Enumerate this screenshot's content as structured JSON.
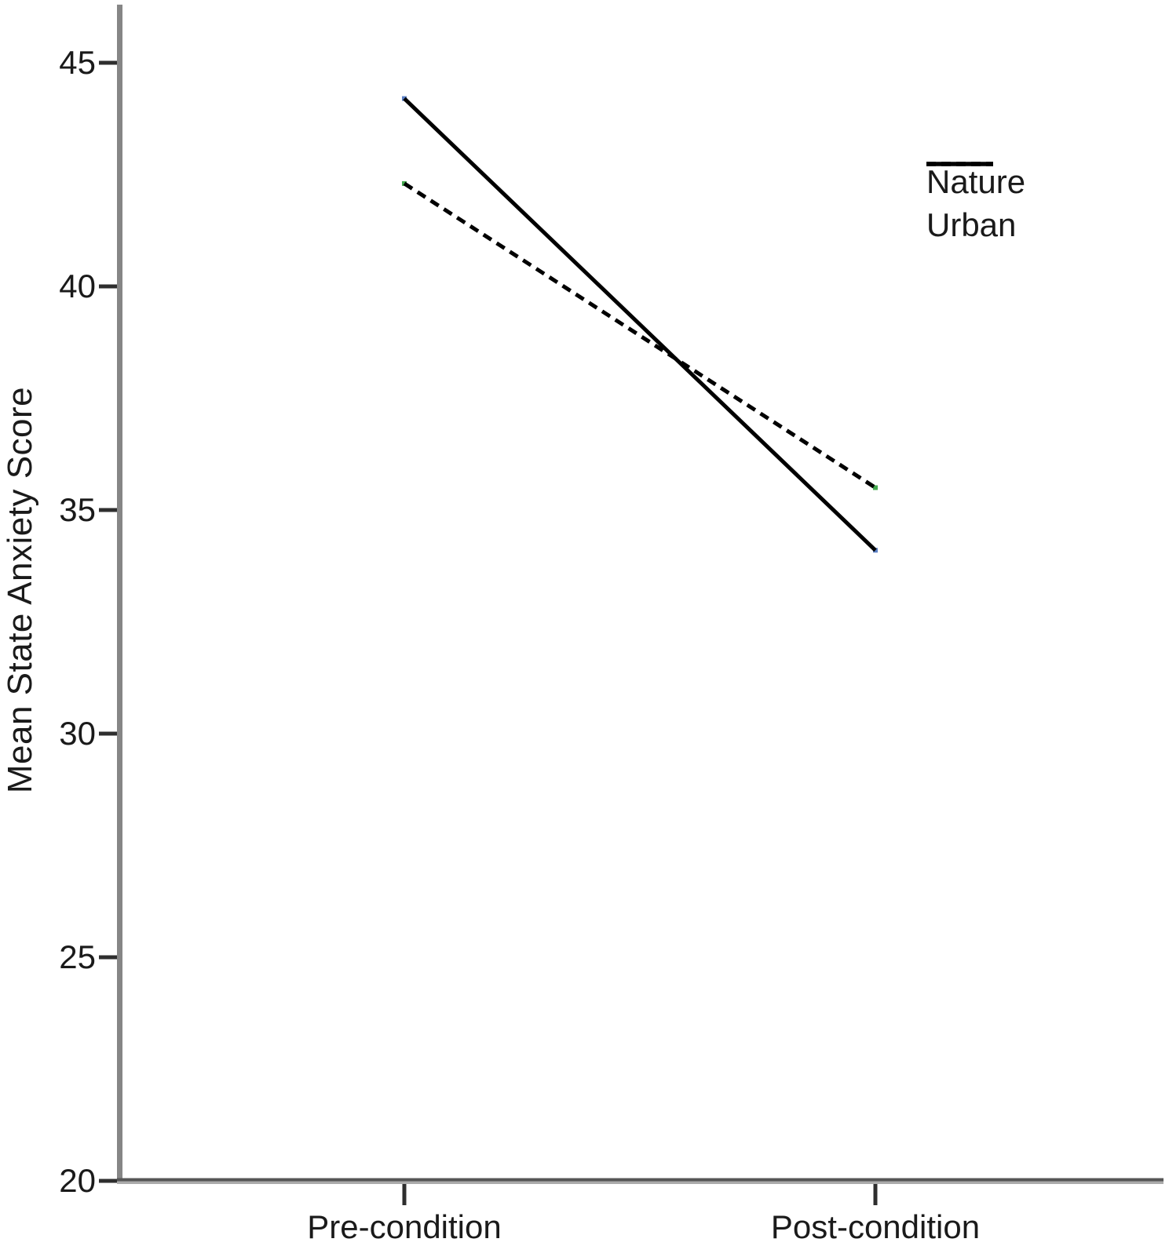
{
  "chart_data": {
    "type": "line",
    "title": "",
    "categories": [
      "Pre-condition",
      "Post-condition"
    ],
    "series": [
      {
        "name": "Nature",
        "values": [
          44.2,
          34.1
        ],
        "line_style": "solid",
        "endpoint_marker_color": "#5b7fc4"
      },
      {
        "name": "Urban",
        "values": [
          42.3,
          35.5
        ],
        "line_style": "dashed",
        "endpoint_marker_color": "#44a94f"
      }
    ],
    "xlabel": "",
    "ylabel": "Mean State Anxiety Score",
    "yticks": [
      20,
      25,
      30,
      35,
      40,
      45
    ],
    "ylim": [
      20,
      46.3
    ],
    "grid": false,
    "legend_position": "top-right",
    "line_color": "#000000",
    "axis_color": "#868686",
    "axis_shadow_color": "#ababab",
    "tick_color": "#2e2e2e",
    "text_color": "#1a1a1a"
  }
}
